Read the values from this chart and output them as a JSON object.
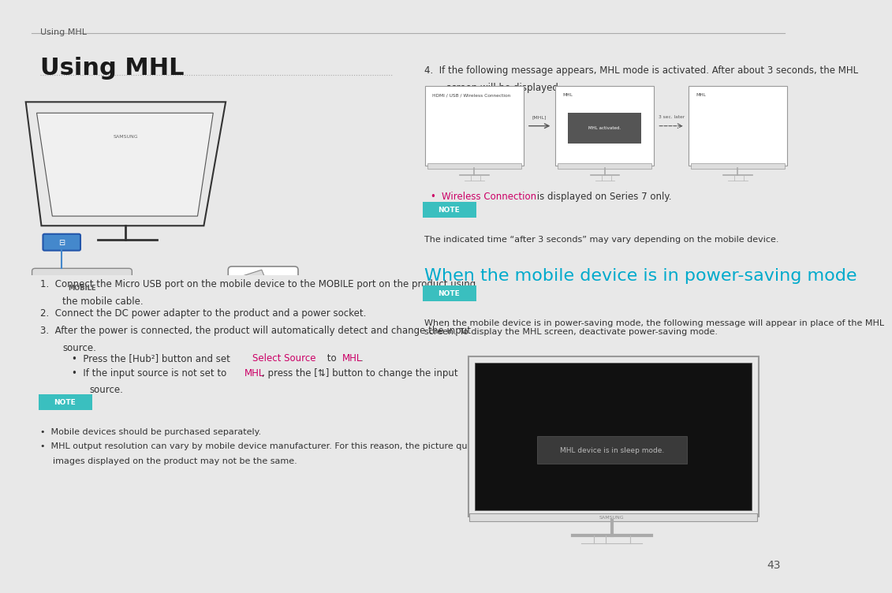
{
  "bg_color": "#e8e8e8",
  "page_bg": "#ffffff",
  "header_text": "Using MHL",
  "header_color": "#555555",
  "header_line_color": "#aaaaaa",
  "title_text": "Using MHL",
  "title_color": "#1a1a1a",
  "title_fontsize": 22,
  "dotted_line_color": "#aaaaaa",
  "section2_title": "When the mobile device is in power-saving mode",
  "section2_color": "#00aacc",
  "section2_fontsize": 16,
  "note_bg": "#3abfbf",
  "note_text_color": "#ffffff",
  "note_fontsize": 8,
  "body_color": "#333333",
  "body_fontsize": 8.5,
  "cyan_link_color": "#cc0066",
  "mhl_link_color": "#cc0066",
  "wireless_color": "#cc0066",
  "page_number": "43",
  "page_number_color": "#555555",
  "step1": "Connect the Micro USB port on the mobile device to the MOBILE port on the product using\nthe mobile cable.",
  "step2": "Connect the DC power adapter to the product and a power socket.",
  "step3": "After the power is connected, the product will automatically detect and change the input\nsource.",
  "step4": "If the following message appears, MHL mode is activated. After about 3 seconds, the MHL\nscreen will be displayed.",
  "wireless_bullet": " is displayed on Series 7 only.",
  "note2_text": "The indicated time “after 3 seconds” may vary depending on the mobile device.",
  "note3_text": "When the mobile device is in power-saving mode, the following message will appear in place of the MHL\nscreen. To display the MHL screen, deactivate power-saving mode.",
  "sleep_text": "MHL device is in sleep mode."
}
